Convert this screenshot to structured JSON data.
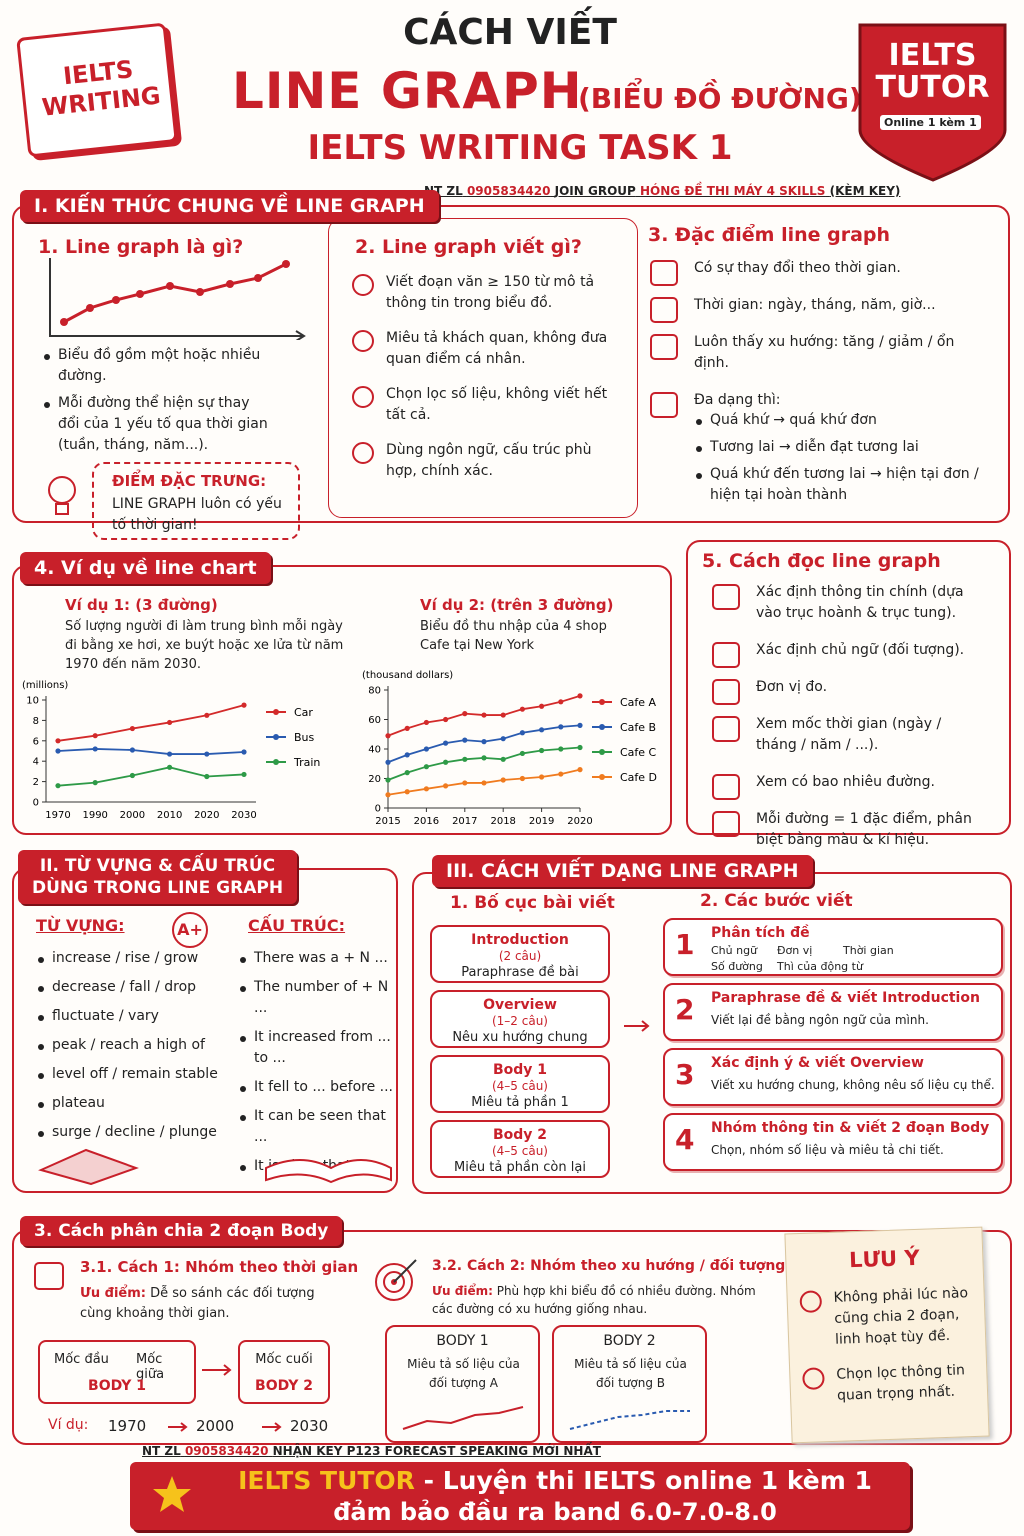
{
  "header": {
    "notebook": "IELTS WRITING",
    "title_top": "CÁCH VIẾT",
    "title_main": "LINE GRAPH",
    "title_paren": "(BIỂU ĐỒ ĐƯỜNG)",
    "subtitle": "IELTS WRITING TASK 1",
    "badge": "IELTS TUTOR",
    "badge_sub": "Online 1 kèm 1",
    "promo": [
      "NT ZL",
      "0905834420",
      "JOIN GROUP",
      "HÓNG ĐỀ THI MÁY 4 SKILLS",
      "(KÈM KEY)"
    ]
  },
  "section1": {
    "heading": "I. KIẾN THỨC CHUNG VỀ LINE GRAPH",
    "col1": {
      "title": "1. Line graph là gì?",
      "bullets": [
        "Biểu đồ gồm một hoặc nhiều đường.",
        "Mỗi đường thể hiện sự thay đổi của 1 yếu tố qua thời gian (tuần, tháng, năm...)."
      ],
      "callout_title": "ĐIỂM ĐẶC TRƯNG:",
      "callout_text": "LINE GRAPH luôn có yếu tố thời gian!"
    },
    "col2": {
      "title": "2. Line graph viết gì?",
      "items": [
        "Viết đoạn văn ≥ 150 từ mô tả thông tin trong biểu đồ.",
        "Miêu tả khách quan, không đưa quan điểm cá nhân.",
        "Chọn lọc số liệu, không viết hết tất cả.",
        "Dùng ngôn ngữ, cấu trúc phù hợp, chính xác."
      ]
    },
    "col3": {
      "title": "3. Đặc điểm line graph",
      "items": [
        "Có sự thay đổi theo thời gian.",
        "Thời gian: ngày, tháng, năm, giờ...",
        "Luôn thấy xu hướng: tăng / giảm / ổn định.",
        "Đa dạng thì:"
      ],
      "tenses": [
        "Quá khứ → quá khứ đơn",
        "Tương lai → diễn đạt tương lai",
        "Quá khứ đến tương lai → hiện tại đơn / hiện tại hoàn thành"
      ]
    }
  },
  "section4": {
    "heading": "4. Ví dụ về line chart",
    "examples": [
      {
        "title": "Ví dụ 1: (3 đường)",
        "desc": "Số lượng người đi làm trung bình mỗi ngày đi bằng xe hơi, xe buýt hoặc xe lửa từ năm 1970 đến năm 2030."
      },
      {
        "title": "Ví dụ 2: (trên 3 đường)",
        "desc": "Biểu đồ thu nhập của 4 shop Cafe tại New York"
      }
    ]
  },
  "section5": {
    "heading": "5. Cách đọc line graph",
    "items": [
      "Xác định thông tin chính (dựa vào trục hoành & trục tung).",
      "Xác định chủ ngữ (đối tượng).",
      "Đơn vị đo.",
      "Xem mốc thời gian (ngày / tháng / năm / ...).",
      "Xem có bao nhiêu đường.",
      "Mỗi đường = 1 đặc điểm, phân biệt bằng màu & kí hiệu."
    ]
  },
  "section2": {
    "heading": [
      "II. TỪ VỰNG & CẤU TRÚC",
      "DÙNG TRONG LINE GRAPH"
    ],
    "vocab_title": "TỪ VỰNG:",
    "grade": "A+",
    "vocab": [
      "increase / rise / grow",
      "decrease / fall / drop",
      "fluctuate / vary",
      "peak / reach a high of",
      "level off / remain stable",
      "plateau",
      "surge / decline / plunge"
    ],
    "structure_title": "CẤU TRÚC:",
    "structures": [
      "There was a + N ...",
      "The number of + N ...",
      "It increased from ... to ...",
      "It fell to ... before ...",
      "It can be seen that ...",
      "It is clear that ..."
    ]
  },
  "section3": {
    "heading": "III. CÁCH VIẾT DẠNG LINE GRAPH",
    "layout_title": "1. Bố cục bài viết",
    "parts": [
      {
        "name": "Introduction",
        "count": "(2 câu)",
        "desc": "Paraphrase đề bài"
      },
      {
        "name": "Overview",
        "count": "(1–2 câu)",
        "desc": "Nêu xu hướng chung"
      },
      {
        "name": "Body 1",
        "count": "(4–5 câu)",
        "desc": "Miêu tả phần 1"
      },
      {
        "name": "Body 2",
        "count": "(4–5 câu)",
        "desc": "Miêu tả phần còn lại"
      }
    ],
    "steps_title": "2. Các bước viết",
    "steps": [
      {
        "num": "1",
        "title": "Phân tích đề",
        "tags": [
          "Chủ ngữ",
          "Đơn vị",
          "Thời gian",
          "Số đường",
          "Thì của động từ"
        ]
      },
      {
        "num": "2",
        "title": "Paraphrase đề & viết Introduction",
        "desc": "Viết lại đề bằng ngôn ngữ của mình."
      },
      {
        "num": "3",
        "title": "Xác định ý & viết Overview",
        "desc": "Viết xu hướng chung, không nêu số liệu cụ thể."
      },
      {
        "num": "4",
        "title": "Nhóm thông tin & viết 2 đoạn Body",
        "desc": "Chọn, nhóm số liệu và miêu tả chi tiết."
      }
    ]
  },
  "body_split": {
    "heading": "3. Cách phân chia 2 đoạn Body",
    "method1": {
      "title": "3.1. Cách 1: Nhóm theo thời gian",
      "pro_label": "Ưu điểm:",
      "pro": "Dễ so sánh các đối tượng cùng khoảng thời gian.",
      "boxes": [
        {
          "labels": [
            "Mốc đầu",
            "Mốc giữa"
          ],
          "body": "BODY 1"
        },
        {
          "labels": [
            "Mốc cuối"
          ],
          "body": "BODY 2"
        }
      ],
      "example_label": "Ví dụ:",
      "years": [
        "1970",
        "2000",
        "2030"
      ]
    },
    "method2": {
      "title": "3.2. Cách 2: Nhóm theo xu hướng / đối tượng",
      "pro_label": "Ưu điểm:",
      "pro": "Phù hợp khi biểu đồ có nhiều đường. Nhóm các đường có xu hướng giống nhau.",
      "bodies": [
        {
          "title": "BODY 1",
          "desc": "Miêu tả số liệu của đối tượng A"
        },
        {
          "title": "BODY 2",
          "desc": "Miêu tả số liệu của đối tượng B"
        }
      ]
    }
  },
  "note": {
    "title": "LƯU Ý",
    "items": [
      "Không phải lúc nào cũng chia 2 đoạn, linh hoạt tùy đề.",
      "Chọn lọc thông tin quan trọng nhất."
    ]
  },
  "footer": {
    "promo": [
      "NT ZL",
      "0905834420",
      "NHẬN KEY P123 FORECAST SPEAKING MỚI NHẤT"
    ],
    "brand": "IELTS TUTOR",
    "line1": "- Luyện thi IELTS online 1 kèm 1",
    "line2": "đảm bảo đầu ra band 6.0-7.0-8.0"
  },
  "chart_data": [
    {
      "type": "line",
      "ylabel": "(millions)",
      "categories": [
        "1970",
        "1990",
        "2000",
        "2010",
        "2020",
        "2030"
      ],
      "ylim": [
        0,
        10
      ],
      "yticks": [
        0,
        2,
        4,
        6,
        8,
        10
      ],
      "series": [
        {
          "name": "Car",
          "color": "#d32a2a",
          "values": [
            6,
            6.5,
            7.2,
            7.8,
            8.5,
            9.5
          ]
        },
        {
          "name": "Bus",
          "color": "#2a5bb0",
          "values": [
            5,
            5.2,
            5.1,
            4.7,
            4.7,
            4.9
          ]
        },
        {
          "name": "Train",
          "color": "#2e9a47",
          "values": [
            1.6,
            1.9,
            2.6,
            3.4,
            2.5,
            2.7
          ]
        }
      ]
    },
    {
      "type": "line",
      "ylabel": "(thousand dollars)",
      "x": [
        2015,
        2015.5,
        2016,
        2016.5,
        2017,
        2017.5,
        2018,
        2018.5,
        2019,
        2019.5,
        2020
      ],
      "xlim": [
        2015,
        2020
      ],
      "xticks": [
        2015,
        2016,
        2017,
        2018,
        2019,
        2020
      ],
      "ylim": [
        0,
        80
      ],
      "yticks": [
        0,
        20,
        40,
        60,
        80
      ],
      "series": [
        {
          "name": "Cafe A",
          "color": "#d32a2a",
          "values": [
            49,
            54,
            58,
            60,
            64,
            63,
            63,
            67,
            69,
            72,
            76
          ]
        },
        {
          "name": "Cafe B",
          "color": "#2a5bb0",
          "values": [
            31,
            36,
            40,
            44,
            46,
            45,
            47,
            51,
            53,
            55,
            56
          ]
        },
        {
          "name": "Cafe C",
          "color": "#2e9a47",
          "values": [
            19,
            24,
            28,
            31,
            33,
            34,
            33,
            37,
            39,
            40,
            41
          ]
        },
        {
          "name": "Cafe D",
          "color": "#f07b1f",
          "values": [
            9,
            11,
            13,
            15,
            17,
            17,
            19,
            20,
            21,
            23,
            26
          ]
        }
      ]
    }
  ]
}
